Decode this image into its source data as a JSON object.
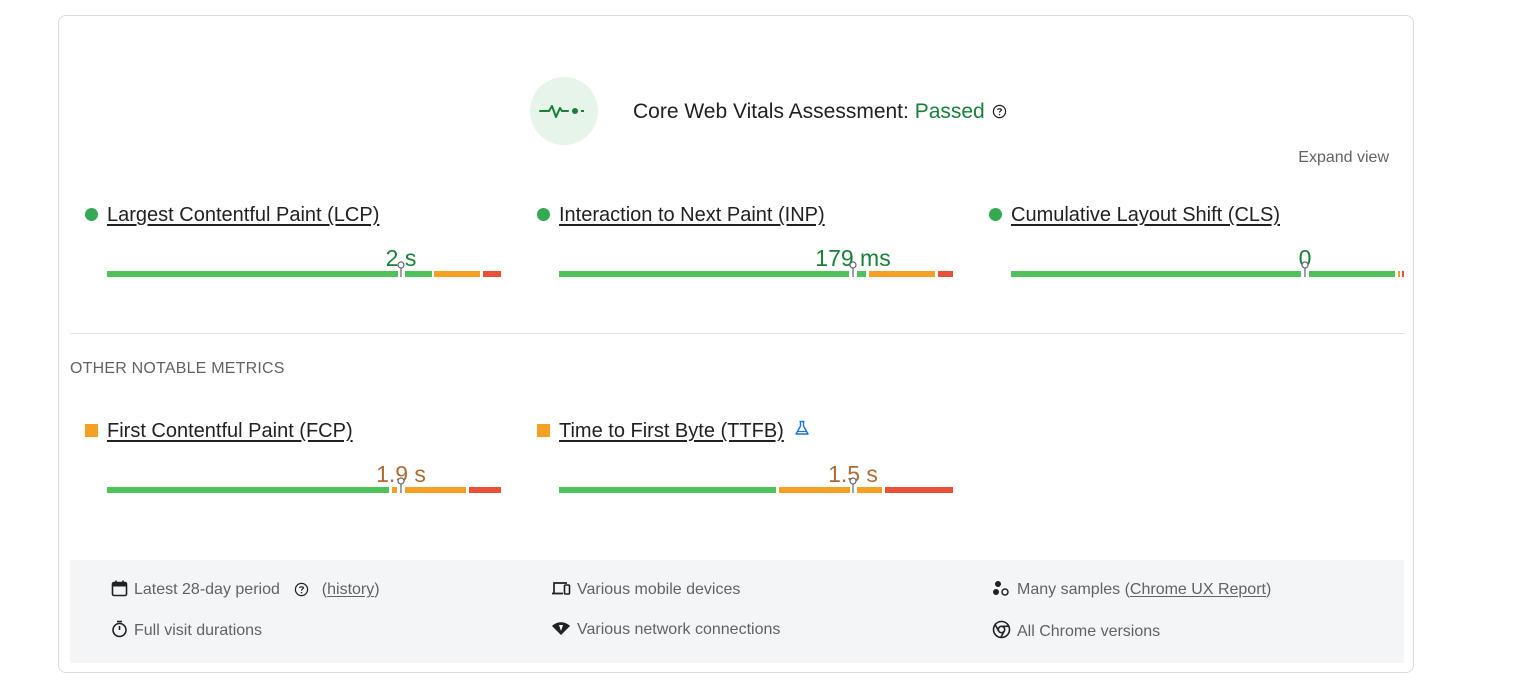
{
  "assessment": {
    "title_prefix": "Core Web Vitals Assessment: ",
    "status": "Passed",
    "expand_label": "Expand view"
  },
  "core_metrics": [
    {
      "label": "Largest Contentful Paint (LCP)",
      "value": "2 s",
      "rating": "good"
    },
    {
      "label": "Interaction to Next Paint (INP)",
      "value": "179 ms",
      "rating": "good"
    },
    {
      "label": "Cumulative Layout Shift (CLS)",
      "value": "0",
      "rating": "good"
    }
  ],
  "other_section_title": "OTHER NOTABLE METRICS",
  "other_metrics": [
    {
      "label": "First Contentful Paint (FCP)",
      "value": "1.9 s",
      "rating": "needs-improvement"
    },
    {
      "label": "Time to First Byte (TTFB)",
      "value": "1.5 s",
      "rating": "needs-improvement",
      "experimental_icon": "flask-icon"
    }
  ],
  "footer": {
    "period_label": "Latest 28-day period",
    "history_link": "history",
    "devices": "Various mobile devices",
    "samples_prefix": "Many samples (",
    "samples_link": "Chrome UX Report",
    "samples_suffix": ")",
    "durations": "Full visit durations",
    "network": "Various network connections",
    "versions": "All Chrome versions"
  },
  "colors": {
    "good": "#188038",
    "needs_improvement": "#b06a33",
    "good_bar": "#4fc35b",
    "ni_bar": "#f4a025",
    "poor_bar": "#e8503a"
  }
}
